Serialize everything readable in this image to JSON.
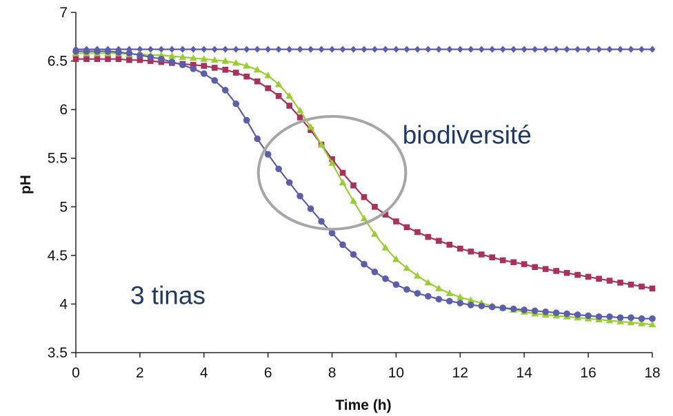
{
  "chart_data": {
    "type": "line",
    "title": "",
    "xlabel": "Time (h)",
    "ylabel": "pH",
    "xlim": [
      0,
      18
    ],
    "ylim": [
      3.5,
      7
    ],
    "xticks": [
      "0",
      "2",
      "4",
      "6",
      "8",
      "10",
      "12",
      "14",
      "16",
      "18"
    ],
    "yticks": [
      "3.5",
      "4",
      "4.5",
      "5",
      "5.5",
      "6",
      "6.5",
      "7"
    ],
    "grid": false,
    "legend": "none",
    "x": [
      0,
      0.333,
      0.667,
      1,
      1.333,
      1.667,
      2,
      2.333,
      2.667,
      3,
      3.333,
      3.667,
      4,
      4.333,
      4.667,
      5,
      5.333,
      5.667,
      6,
      6.333,
      6.667,
      7,
      7.333,
      7.667,
      8,
      8.333,
      8.667,
      9,
      9.333,
      9.667,
      10,
      10.333,
      10.667,
      11,
      11.333,
      11.667,
      12,
      12.333,
      12.667,
      13,
      13.333,
      13.667,
      14,
      14.333,
      14.667,
      15,
      15.333,
      15.667,
      16,
      16.333,
      16.667,
      17,
      17.333,
      17.667,
      18
    ],
    "series": [
      {
        "color": "#5b5ea8",
        "marker": "diamond",
        "values": [
          6.62,
          6.62,
          6.62,
          6.62,
          6.62,
          6.62,
          6.62,
          6.62,
          6.62,
          6.62,
          6.62,
          6.62,
          6.62,
          6.62,
          6.62,
          6.62,
          6.62,
          6.62,
          6.62,
          6.62,
          6.62,
          6.62,
          6.62,
          6.62,
          6.62,
          6.62,
          6.62,
          6.62,
          6.62,
          6.62,
          6.62,
          6.62,
          6.62,
          6.62,
          6.62,
          6.62,
          6.62,
          6.62,
          6.62,
          6.62,
          6.62,
          6.62,
          6.62,
          6.62,
          6.62,
          6.62,
          6.62,
          6.62,
          6.62,
          6.62,
          6.62,
          6.62,
          6.62,
          6.62,
          6.62
        ]
      },
      {
        "color": "#a8325c",
        "marker": "square",
        "values": [
          6.52,
          6.52,
          6.52,
          6.52,
          6.52,
          6.51,
          6.51,
          6.5,
          6.49,
          6.48,
          6.47,
          6.46,
          6.45,
          6.43,
          6.41,
          6.38,
          6.34,
          6.29,
          6.22,
          6.14,
          6.04,
          5.92,
          5.79,
          5.64,
          5.49,
          5.35,
          5.22,
          5.1,
          5.0,
          4.92,
          4.85,
          4.79,
          4.74,
          4.69,
          4.65,
          4.61,
          4.57,
          4.54,
          4.51,
          4.48,
          4.45,
          4.43,
          4.41,
          4.38,
          4.36,
          4.34,
          4.32,
          4.3,
          4.28,
          4.26,
          4.24,
          4.22,
          4.2,
          4.18,
          4.16
        ]
      },
      {
        "color": "#9acd32",
        "marker": "triangle",
        "values": [
          6.58,
          6.58,
          6.58,
          6.58,
          6.58,
          6.57,
          6.57,
          6.56,
          6.56,
          6.55,
          6.54,
          6.53,
          6.52,
          6.51,
          6.5,
          6.48,
          6.45,
          6.41,
          6.35,
          6.26,
          6.14,
          5.99,
          5.82,
          5.64,
          5.45,
          5.25,
          5.06,
          4.88,
          4.72,
          4.58,
          4.46,
          4.37,
          4.29,
          4.22,
          4.16,
          4.11,
          4.07,
          4.04,
          4.01,
          3.98,
          3.96,
          3.94,
          3.92,
          3.9,
          3.89,
          3.88,
          3.87,
          3.86,
          3.85,
          3.84,
          3.83,
          3.82,
          3.81,
          3.8,
          3.79
        ]
      },
      {
        "color": "#5b5ea8",
        "marker": "circle",
        "values": [
          6.6,
          6.6,
          6.6,
          6.6,
          6.59,
          6.58,
          6.56,
          6.54,
          6.52,
          6.49,
          6.46,
          6.42,
          6.37,
          6.3,
          6.2,
          6.06,
          5.89,
          5.7,
          5.54,
          5.39,
          5.25,
          5.11,
          4.98,
          4.85,
          4.73,
          4.61,
          4.51,
          4.41,
          4.33,
          4.26,
          4.2,
          4.15,
          4.11,
          4.08,
          4.05,
          4.03,
          4.01,
          3.99,
          3.98,
          3.97,
          3.96,
          3.95,
          3.94,
          3.93,
          3.92,
          3.91,
          3.9,
          3.89,
          3.88,
          3.87,
          3.87,
          3.86,
          3.86,
          3.85,
          3.85
        ]
      }
    ],
    "annotations": [
      {
        "text": "biodiversité",
        "x": 10.2,
        "y": 5.65
      },
      {
        "text": "3 tinas",
        "x": 1.7,
        "y": 4.0
      }
    ],
    "highlight_ellipse": {
      "cx": 8.0,
      "cy": 5.35,
      "rx": 2.3,
      "ry": 0.58,
      "color": "#a6a6a6"
    }
  }
}
